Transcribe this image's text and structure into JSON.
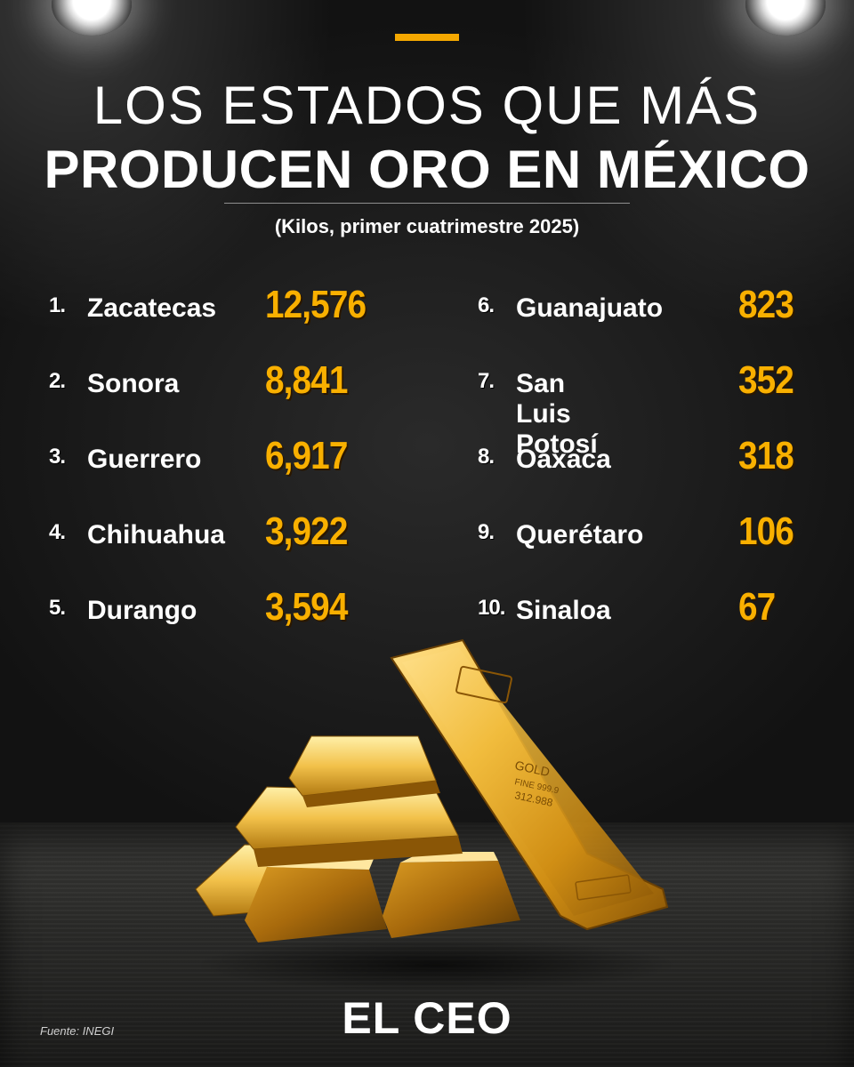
{
  "header": {
    "title_line1": "LOS ESTADOS QUE MÁS",
    "title_line2": "PRODUCEN ORO EN MÉXICO",
    "subtitle": "(Kilos, primer cuatrimestre 2025)"
  },
  "ranking": {
    "left": [
      {
        "rank": "1.",
        "state": "Zacatecas",
        "value": "12,576"
      },
      {
        "rank": "2.",
        "state": "Sonora",
        "value": "8,841"
      },
      {
        "rank": "3.",
        "state": "Guerrero",
        "value": "6,917"
      },
      {
        "rank": "4.",
        "state": "Chihuahua",
        "value": "3,922"
      },
      {
        "rank": "5.",
        "state": "Durango",
        "value": "3,594"
      }
    ],
    "right": [
      {
        "rank": "6.",
        "state": "Guanajuato",
        "value": "823"
      },
      {
        "rank": "7.",
        "state": "San Luis Potosí",
        "value": "352"
      },
      {
        "rank": "8.",
        "state": "Oaxaca",
        "value": "318"
      },
      {
        "rank": "9.",
        "state": "Querétaro",
        "value": "106"
      },
      {
        "rank": "10.",
        "state": "Sinaloa",
        "value": "67"
      }
    ]
  },
  "gold_bar_engraving": {
    "line1": "GOLD",
    "line2": "FINE 999.9",
    "line3": "312.988"
  },
  "footer": {
    "brand": "EL CEO",
    "source": "Fuente: INEGI"
  },
  "colors": {
    "accent": "#f5a800",
    "value": "#f9b000",
    "background": "#151515",
    "text": "#ffffff"
  },
  "icons": [
    "spotlight-left-icon",
    "spotlight-right-icon",
    "gold-bars-illustration"
  ]
}
